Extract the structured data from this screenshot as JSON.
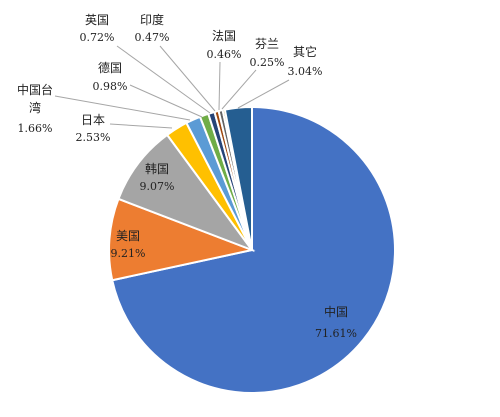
{
  "chart_data": {
    "type": "pie",
    "title": "",
    "slices": [
      {
        "name": "中国",
        "value": 71.61,
        "value_label": "71.61%",
        "color": "#4472C4"
      },
      {
        "name": "美国",
        "value": 9.21,
        "value_label": "9.21%",
        "color": "#ED7D31"
      },
      {
        "name": "韩国",
        "value": 9.07,
        "value_label": "9.07%",
        "color": "#A5A5A5"
      },
      {
        "name": "日本",
        "value": 2.53,
        "value_label": "2.53%",
        "color": "#FFC000"
      },
      {
        "name": "中国台湾",
        "value": 1.66,
        "value_label": "1.66%",
        "color": "#5B9BD5"
      },
      {
        "name": "德国",
        "value": 0.98,
        "value_label": "0.98%",
        "color": "#70AD47"
      },
      {
        "name": "英国",
        "value": 0.72,
        "value_label": "0.72%",
        "color": "#264478"
      },
      {
        "name": "印度",
        "value": 0.47,
        "value_label": "0.47%",
        "color": "#9E480E"
      },
      {
        "name": "法国",
        "value": 0.46,
        "value_label": "0.46%",
        "color": "#636363"
      },
      {
        "name": "芬兰",
        "value": 0.25,
        "value_label": "0.25%",
        "color": "#997300"
      },
      {
        "name": "其它",
        "value": 3.04,
        "value_label": "3.04%",
        "color": "#255E91"
      }
    ],
    "start": "12 o'clock",
    "direction": "clockwise",
    "legend": "none"
  }
}
